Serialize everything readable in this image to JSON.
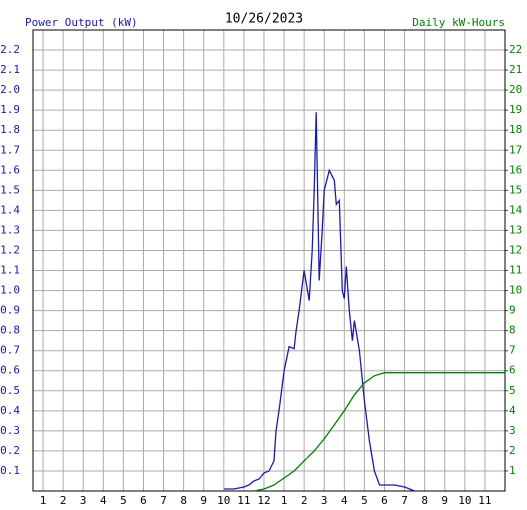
{
  "chart_data": {
    "type": "line",
    "title": "10/26/2023",
    "ylabel": "Power Output (kW)",
    "y2label": "Daily kW-Hours",
    "xlim": [
      0.5,
      24
    ],
    "ylim": [
      0,
      2.3
    ],
    "y2lim": [
      0,
      23
    ],
    "grid": true,
    "xticks": [
      1,
      2,
      3,
      4,
      5,
      6,
      7,
      8,
      9,
      10,
      11,
      12,
      {
        "value": 13,
        "label": "1"
      },
      {
        "value": 14,
        "label": "2"
      },
      {
        "value": 15,
        "label": "3"
      },
      {
        "value": 16,
        "label": "4"
      },
      {
        "value": 17,
        "label": "5"
      },
      {
        "value": 18,
        "label": "6"
      },
      {
        "value": 19,
        "label": "7"
      },
      {
        "value": 20,
        "label": "8"
      },
      {
        "value": 21,
        "label": "9"
      },
      {
        "value": 22,
        "label": "10"
      },
      {
        "value": 23,
        "label": "11"
      }
    ],
    "yticks": [
      0.1,
      0.2,
      0.3,
      0.4,
      0.5,
      0.6,
      0.7,
      0.8,
      0.9,
      {
        "value": 1,
        "label": "1.0"
      },
      1.1,
      1.2,
      1.3,
      1.4,
      1.5,
      1.6,
      1.7,
      1.8,
      1.9,
      {
        "value": 2,
        "label": "2.0"
      },
      2.1,
      2.2
    ],
    "y2ticks": [
      1,
      2,
      3,
      4,
      5,
      6,
      7,
      8,
      9,
      10,
      11,
      12,
      13,
      14,
      15,
      16,
      17,
      18,
      19,
      20,
      21,
      22
    ],
    "series": [
      {
        "color": "#1a1aa8",
        "axis": "y",
        "x": [
          10.0,
          10.5,
          11.0,
          11.25,
          11.5,
          11.75,
          12.0,
          12.25,
          12.5,
          12.6,
          12.75,
          13.0,
          13.25,
          13.5,
          13.6,
          13.75,
          14.0,
          14.25,
          14.4,
          14.5,
          14.6,
          14.75,
          14.9,
          15.0,
          15.25,
          15.5,
          15.6,
          15.75,
          15.9,
          16.0,
          16.1,
          16.25,
          16.4,
          16.5,
          16.75,
          16.9,
          17.0,
          17.25,
          17.5,
          17.75,
          18.0,
          18.5,
          19.0,
          19.5
        ],
        "values": [
          0.01,
          0.01,
          0.02,
          0.03,
          0.05,
          0.06,
          0.09,
          0.1,
          0.15,
          0.3,
          0.4,
          0.6,
          0.72,
          0.71,
          0.8,
          0.9,
          1.1,
          0.95,
          1.2,
          1.5,
          1.89,
          1.05,
          1.3,
          1.5,
          1.6,
          1.55,
          1.43,
          1.45,
          1.0,
          0.96,
          1.12,
          0.9,
          0.75,
          0.85,
          0.7,
          0.55,
          0.45,
          0.25,
          0.1,
          0.03,
          0.03,
          0.03,
          0.02,
          0.0
        ]
      },
      {
        "color": "#008000",
        "axis": "y2",
        "x": [
          11.5,
          12.0,
          12.5,
          13.0,
          13.5,
          14.0,
          14.5,
          15.0,
          15.5,
          16.0,
          16.5,
          17.0,
          17.5,
          18.0,
          24.0
        ],
        "values": [
          0,
          0.1,
          0.3,
          0.65,
          1.0,
          1.5,
          2.0,
          2.6,
          3.3,
          4.0,
          4.8,
          5.4,
          5.75,
          5.9,
          5.9
        ]
      }
    ]
  }
}
